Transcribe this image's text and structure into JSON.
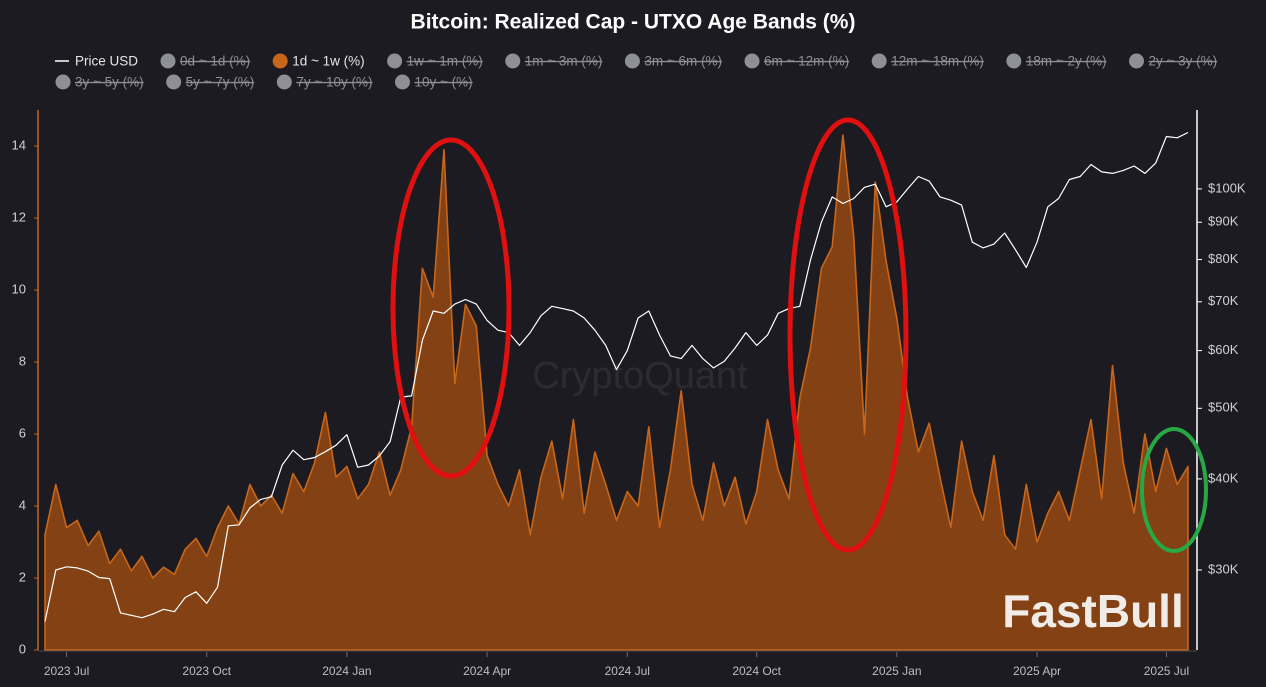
{
  "chart_data": {
    "type": "area-line",
    "title": "Bitcoin: Realized Cap - UTXO Age Bands (%)",
    "watermark": "CryptoQuant",
    "logo": "FastBull",
    "categories": [
      null,
      null,
      "2023 Jul",
      null,
      null,
      null,
      null,
      null,
      null,
      null,
      null,
      null,
      null,
      null,
      null,
      "2023 Oct",
      null,
      null,
      null,
      null,
      null,
      null,
      null,
      null,
      null,
      null,
      null,
      null,
      "2024 Jan",
      null,
      null,
      null,
      null,
      null,
      null,
      null,
      null,
      null,
      null,
      null,
      null,
      "2024 Apr",
      null,
      null,
      null,
      null,
      null,
      null,
      null,
      null,
      null,
      null,
      null,
      null,
      "2024 Jul",
      null,
      null,
      null,
      null,
      null,
      null,
      null,
      null,
      null,
      null,
      null,
      "2024 Oct",
      null,
      null,
      null,
      null,
      null,
      null,
      null,
      null,
      null,
      null,
      null,
      null,
      "2025 Jan",
      null,
      null,
      null,
      null,
      null,
      null,
      null,
      null,
      null,
      null,
      null,
      null,
      "2025 Apr",
      null,
      null,
      null,
      null,
      null,
      null,
      null,
      null,
      null,
      null,
      null,
      "2025 Jul",
      null,
      null
    ],
    "series": [
      {
        "name": "Price USD",
        "color": "#ffffff",
        "axis": "y2",
        "values": [
          25500,
          30000,
          30300,
          30200,
          29900,
          29300,
          29200,
          26200,
          26000,
          25800,
          26100,
          26500,
          26300,
          27500,
          28000,
          27000,
          28400,
          34500,
          34600,
          36500,
          37500,
          37800,
          41800,
          43800,
          42500,
          42800,
          43600,
          44500,
          46000,
          41500,
          41800,
          43000,
          45000,
          51800,
          52000,
          62000,
          68000,
          67500,
          69500,
          70500,
          69500,
          66000,
          64000,
          63500,
          61000,
          63500,
          67000,
          69000,
          68500,
          68000,
          66500,
          64000,
          61000,
          56500,
          60000,
          66500,
          68000,
          63000,
          59000,
          58500,
          61000,
          58500,
          56800,
          58000,
          60500,
          63500,
          61000,
          63000,
          67500,
          68500,
          69000,
          80000,
          90000,
          97500,
          95500,
          97000,
          100500,
          101500,
          94500,
          96000,
          100000,
          104000,
          102500,
          97500,
          96500,
          95000,
          84500,
          83000,
          84000,
          87000,
          82500,
          78000,
          84500,
          94500,
          97000,
          103000,
          104000,
          108000,
          105500,
          105000,
          106000,
          107500,
          105000,
          108500,
          118000,
          117500,
          119500
        ]
      },
      {
        "name": "1d ~ 1w (%)",
        "color": "#c8661c",
        "values": [
          3.2,
          4.6,
          3.4,
          3.6,
          2.9,
          3.3,
          2.4,
          2.8,
          2.2,
          2.6,
          2.0,
          2.3,
          2.1,
          2.8,
          3.1,
          2.6,
          3.4,
          4.0,
          3.5,
          4.6,
          4.0,
          4.3,
          3.8,
          4.9,
          4.4,
          5.2,
          6.6,
          4.8,
          5.1,
          4.2,
          4.6,
          5.5,
          4.3,
          5.0,
          6.2,
          10.6,
          9.8,
          13.9,
          7.4,
          9.6,
          9.0,
          5.4,
          4.6,
          4.0,
          5.0,
          3.2,
          4.8,
          5.8,
          4.2,
          6.4,
          3.8,
          5.5,
          4.6,
          3.6,
          4.4,
          4.0,
          6.2,
          3.4,
          5.0,
          7.2,
          4.6,
          3.6,
          5.2,
          4.0,
          4.8,
          3.5,
          4.4,
          6.4,
          5.0,
          4.2,
          7.0,
          8.4,
          10.6,
          11.2,
          14.3,
          11.5,
          6.0,
          13.0,
          10.8,
          9.2,
          7.0,
          5.5,
          6.3,
          4.8,
          3.4,
          5.8,
          4.4,
          3.6,
          5.4,
          3.2,
          2.8,
          4.6,
          3.0,
          3.8,
          4.4,
          3.6,
          5.0,
          6.4,
          4.2,
          7.9,
          5.2,
          3.8,
          6.0,
          4.4,
          5.6,
          4.6,
          5.1
        ]
      }
    ],
    "hidden_series": [
      "0d ~ 1d (%)",
      "1w ~ 1m (%)",
      "1m ~ 3m (%)",
      "3m ~ 6m (%)",
      "6m ~ 12m (%)",
      "12m ~ 18m (%)",
      "18m ~ 2y (%)",
      "2y ~ 3y (%)",
      "3y ~ 5y (%)",
      "5y ~ 7y (%)",
      "7y ~ 10y (%)",
      "10y ~ (%)"
    ],
    "hidden_color": "#8f8f96",
    "ylim": [
      0,
      15
    ],
    "yticks": [
      0,
      2,
      4,
      6,
      8,
      10,
      12,
      14
    ],
    "y2lim": [
      23300,
      128300
    ],
    "y2_log": true,
    "y2ticks": [
      {
        "value": 30000,
        "label": "$30K"
      },
      {
        "value": 40000,
        "label": "$40K"
      },
      {
        "value": 50000,
        "label": "$50K"
      },
      {
        "value": 60000,
        "label": "$60K"
      },
      {
        "value": 70000,
        "label": "$70K"
      },
      {
        "value": 80000,
        "label": "$80K"
      },
      {
        "value": 90000,
        "label": "$90K"
      },
      {
        "value": 100000,
        "label": "$100K"
      }
    ]
  }
}
